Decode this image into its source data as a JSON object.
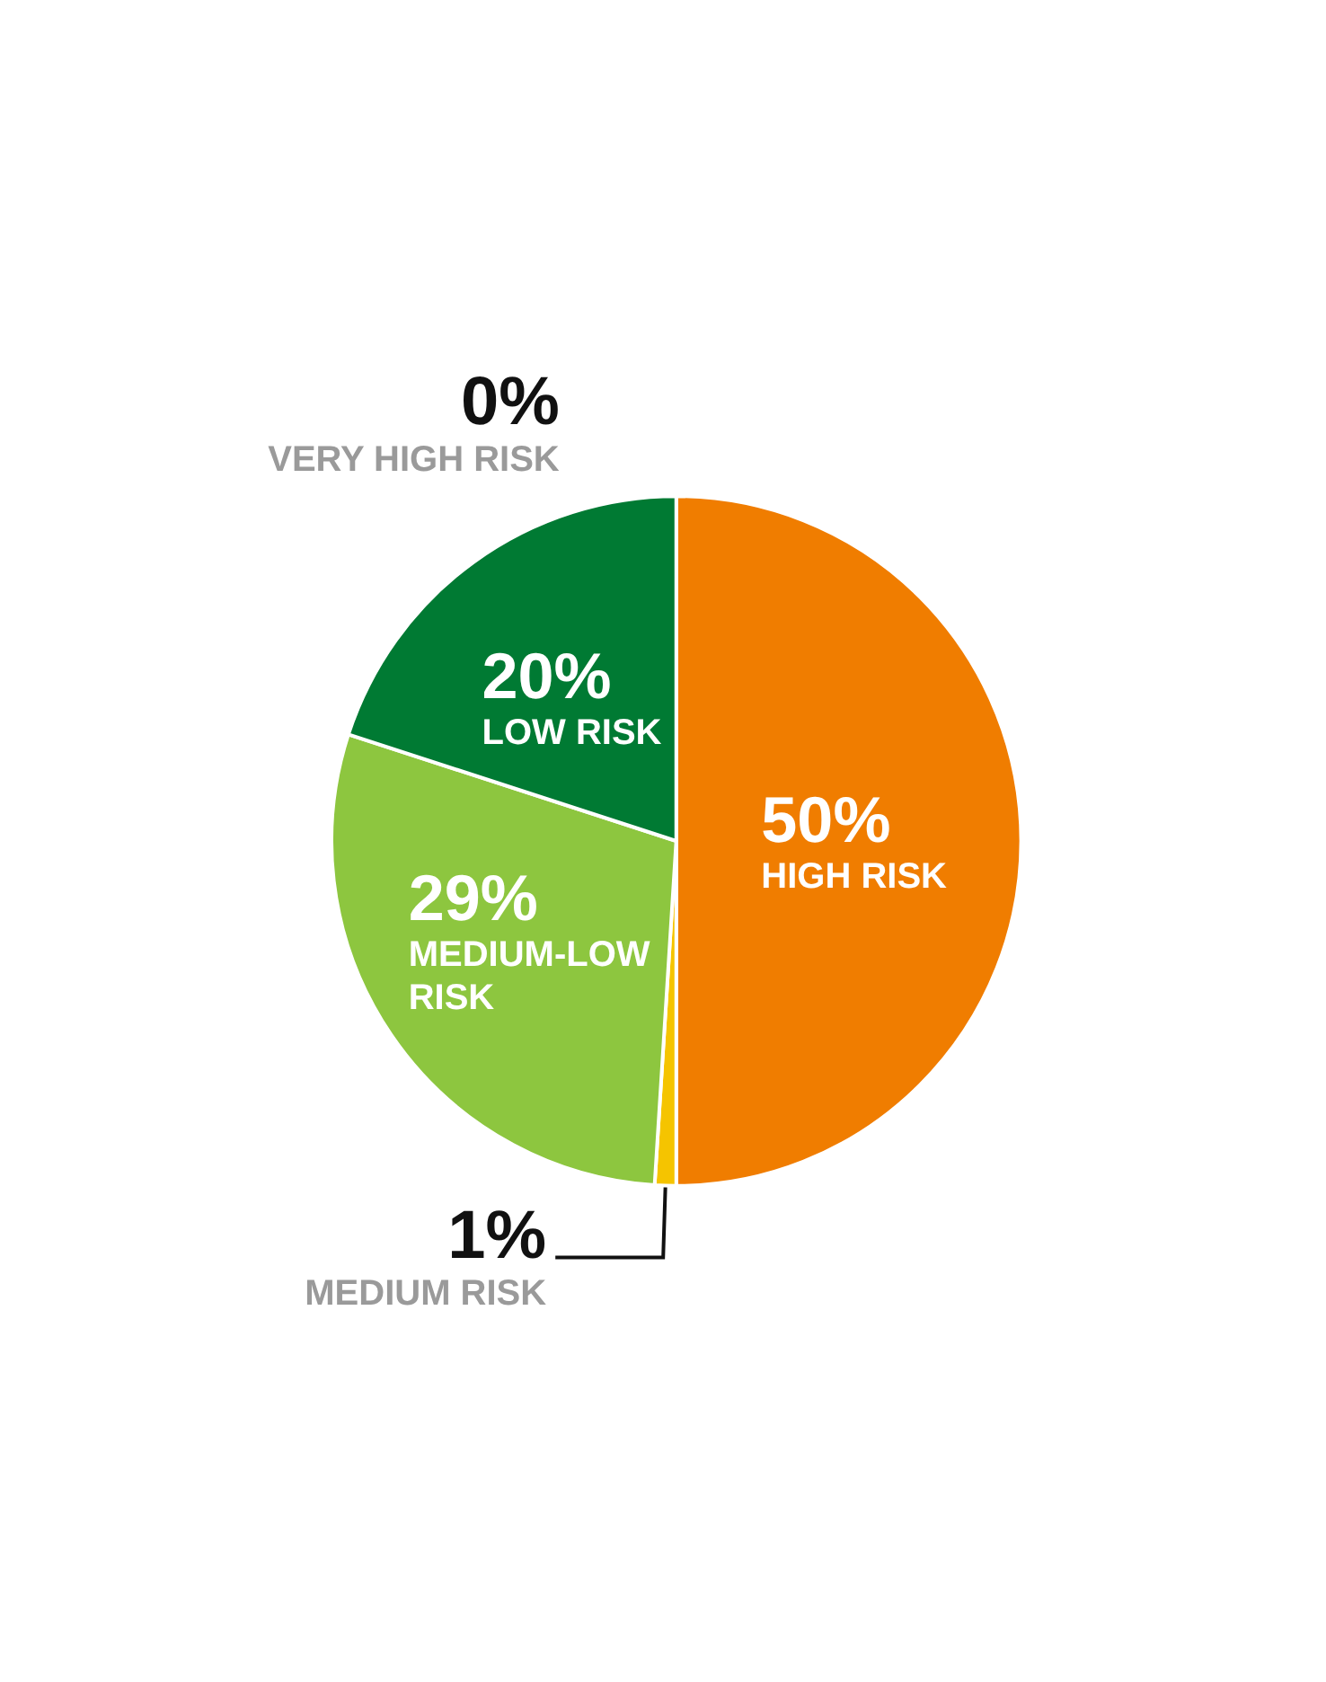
{
  "chart_data": {
    "type": "pie",
    "categories": [
      "VERY HIGH RISK",
      "HIGH RISK",
      "MEDIUM RISK",
      "MEDIUM-LOW RISK",
      "LOW RISK"
    ],
    "values": [
      0,
      50,
      1,
      29,
      20
    ],
    "value_labels": [
      "0%",
      "50%",
      "1%",
      "29%",
      "20%"
    ],
    "colors": [
      "#e2231a",
      "#f07d00",
      "#f5c400",
      "#8dc63f",
      "#007a33"
    ],
    "legend": false
  }
}
